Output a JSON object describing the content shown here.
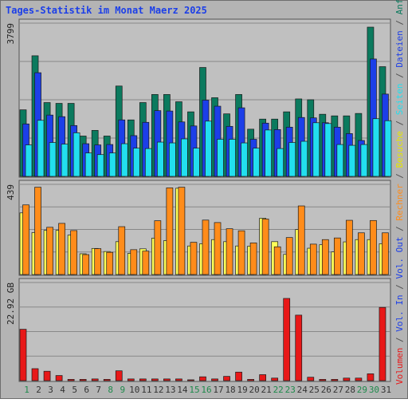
{
  "chart_data": {
    "title": "Tages-Statistik im Monat Maerz 2025",
    "type": "bar",
    "days": [
      "1",
      "2",
      "3",
      "4",
      "5",
      "6",
      "7",
      "8",
      "9",
      "10",
      "11",
      "12",
      "13",
      "14",
      "15",
      "16",
      "17",
      "18",
      "19",
      "20",
      "21",
      "22",
      "23",
      "24",
      "25",
      "26",
      "27",
      "28",
      "29",
      "30",
      "31"
    ],
    "weekend_days": [
      1,
      8,
      9,
      15,
      16,
      22,
      23,
      29,
      30
    ],
    "panels": [
      {
        "ytick": "3799",
        "ymax": 3799,
        "series": [
          {
            "name": "Anfragen",
            "color": "#0b7a5e",
            "values": [
              1650,
              2990,
              1830,
              1810,
              1810,
              1000,
              1140,
              1000,
              2240,
              1400,
              1830,
              2030,
              2030,
              1850,
              1600,
              2700,
              1950,
              1550,
              2030,
              1170,
              1420,
              1420,
              1600,
              1920,
              1900,
              1540,
              1500,
              1500,
              1560,
              3700,
              2720
            ]
          },
          {
            "name": "Dateien",
            "color": "#1c3fe8",
            "values": [
              1300,
              2570,
              1520,
              1480,
              1260,
              810,
              780,
              790,
              1400,
              1010,
              1340,
              1630,
              1620,
              1350,
              1250,
              1890,
              1740,
              1240,
              1700,
              920,
              1320,
              1160,
              1220,
              1460,
              1450,
              1330,
              1220,
              1060,
              890,
              2910,
              2040
            ]
          },
          {
            "name": "Seiten",
            "color": "#22dfef",
            "values": [
              780,
              1390,
              840,
              800,
              1080,
              580,
              540,
              580,
              810,
              700,
              690,
              850,
              830,
              930,
              700,
              1370,
              920,
              920,
              830,
              700,
              1150,
              690,
              840,
              870,
              1330,
              1310,
              790,
              770,
              790,
              1430,
              1380
            ]
          }
        ]
      },
      {
        "ytick": "439",
        "ymax": 439,
        "series": [
          {
            "name": "Besuche",
            "color": "#ffff58",
            "values": [
              300,
              204,
              215,
              215,
              192,
              101,
              127,
              112,
              160,
              103,
              125,
              177,
              165,
              420,
              139,
              150,
              170,
              160,
              139,
              138,
              274,
              160,
              98,
              219,
              128,
              145,
              110,
              159,
              170,
              170,
              150
            ]
          },
          {
            "name": "Rechner",
            "color": "#ff8c1a",
            "values": [
              339,
              425,
              230,
              249,
              214,
              97,
              126,
              108,
              233,
              121,
              114,
              262,
              422,
              425,
              157,
              265,
              253,
              223,
              213,
              154,
              270,
              135,
              180,
              334,
              148,
              170,
              178,
              264,
              203,
              263,
              203
            ]
          }
        ]
      },
      {
        "ytick": "22.92 GB",
        "ymax": 22.92,
        "series": [
          {
            "name": "Volumen",
            "color": "#e81818",
            "values": [
              12.0,
              2.8,
              2.2,
              1.2,
              0.3,
              0.3,
              0.4,
              0.3,
              2.3,
              0.4,
              0.4,
              0.4,
              0.4,
              0.4,
              0.2,
              0.9,
              0.4,
              1.0,
              2.0,
              0.3,
              1.4,
              0.6,
              19.2,
              15.3,
              0.8,
              0.3,
              0.3,
              0.6,
              0.6,
              1.6,
              17.1
            ]
          }
        ]
      }
    ],
    "right_label_segments": [
      {
        "text": "Volumen",
        "color": "#e81818"
      },
      {
        "text": " / ",
        "color": "#505050"
      },
      {
        "text": "Vol. In",
        "color": "#1c3fe8"
      },
      {
        "text": " / ",
        "color": "#505050"
      },
      {
        "text": "Vol. Out",
        "color": "#1c3fe8"
      },
      {
        "text": " / ",
        "color": "#505050"
      },
      {
        "text": "Rechner",
        "color": "#ff8c1a"
      },
      {
        "text": " / ",
        "color": "#505050"
      },
      {
        "text": "Besuche",
        "color": "#e6e600"
      },
      {
        "text": " / ",
        "color": "#505050"
      },
      {
        "text": "Seiten",
        "color": "#22dfef"
      },
      {
        "text": " / ",
        "color": "#505050"
      },
      {
        "text": "Dateien",
        "color": "#1c3fe8"
      },
      {
        "text": " / ",
        "color": "#505050"
      },
      {
        "text": "Anfragen",
        "color": "#0b7a5e"
      }
    ],
    "colors": {
      "title": "#1c3fe8",
      "plot_bg": "#c0c0c0",
      "grid": "#888888",
      "weekday_label": "#333333",
      "weekend_label": "#1f8a4c"
    }
  }
}
